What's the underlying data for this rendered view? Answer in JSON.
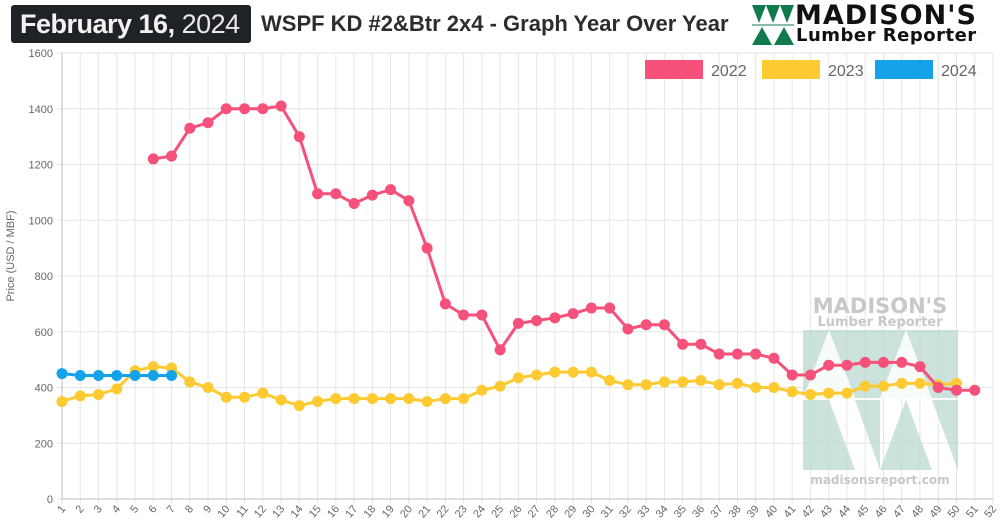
{
  "header": {
    "date_bold": "February 16,",
    "date_year": "2024",
    "title": "WSPF KD #2&Btr 2x4 - Graph Year Over Year",
    "logo_line1": "MADISON'S",
    "logo_line2": "Lumber Reporter"
  },
  "watermark": {
    "line1": "MADISON'S",
    "line2": "Lumber Reporter",
    "url": "madisonsreport.com"
  },
  "colors": {
    "series_2022": "#f6517a",
    "series_2023": "#fdca31",
    "series_2024": "#14a2e8",
    "logo_green": "#117a4f"
  },
  "chart_data": {
    "type": "line",
    "title": "WSPF KD #2&Btr 2x4 - Graph Year Over Year",
    "xlabel": "",
    "ylabel": "Price (USD / MBF)",
    "ylim": [
      0,
      1600
    ],
    "yticks": [
      0,
      200,
      400,
      600,
      800,
      1000,
      1200,
      1400,
      1600
    ],
    "x": [
      1,
      2,
      3,
      4,
      5,
      6,
      7,
      8,
      9,
      10,
      11,
      12,
      13,
      14,
      15,
      16,
      17,
      18,
      19,
      20,
      21,
      22,
      23,
      24,
      25,
      26,
      27,
      28,
      29,
      30,
      31,
      32,
      33,
      34,
      35,
      36,
      37,
      38,
      39,
      40,
      41,
      42,
      43,
      44,
      45,
      46,
      47,
      48,
      49,
      50,
      51,
      52
    ],
    "grid": true,
    "legend_position": "top-right",
    "series": [
      {
        "name": "2022",
        "start_week": 6,
        "values": [
          1220,
          1230,
          1330,
          1350,
          1400,
          1400,
          1400,
          1410,
          1300,
          1095,
          1095,
          1060,
          1090,
          1110,
          1070,
          900,
          700,
          660,
          660,
          535,
          630,
          640,
          650,
          665,
          685,
          685,
          610,
          625,
          625,
          555,
          555,
          520,
          520,
          520,
          505,
          445,
          445,
          480,
          480,
          490,
          490,
          490,
          475,
          400,
          390,
          390
        ]
      },
      {
        "name": "2023",
        "start_week": 1,
        "values": [
          350,
          370,
          375,
          395,
          460,
          475,
          470,
          420,
          400,
          365,
          365,
          380,
          355,
          335,
          350,
          360,
          360,
          360,
          360,
          360,
          350,
          360,
          360,
          390,
          405,
          435,
          445,
          455,
          455,
          455,
          425,
          410,
          410,
          420,
          420,
          425,
          410,
          415,
          400,
          400,
          385,
          375,
          380,
          380,
          405,
          405,
          415,
          415,
          410,
          415
        ]
      },
      {
        "name": "2024",
        "start_week": 1,
        "values": [
          450,
          443,
          443,
          443,
          443,
          443,
          443
        ]
      }
    ]
  }
}
